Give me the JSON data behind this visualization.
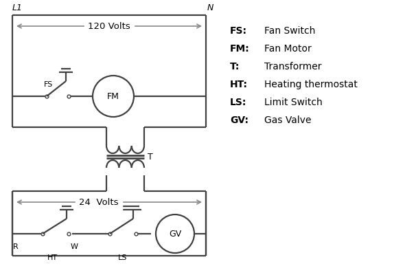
{
  "bg_color": "#ffffff",
  "line_color": "#404040",
  "text_color": "#000000",
  "lw": 1.6,
  "legend_items": [
    [
      "FS:",
      "Fan Switch"
    ],
    [
      "FM:",
      "Fan Motor"
    ],
    [
      "T:",
      "Transformer"
    ],
    [
      "HT:",
      "Heating thermostat"
    ],
    [
      "LS:",
      "Limit Switch"
    ],
    [
      "GV:",
      "Gas Valve"
    ]
  ],
  "fig_w": 5.9,
  "fig_h": 4.0
}
